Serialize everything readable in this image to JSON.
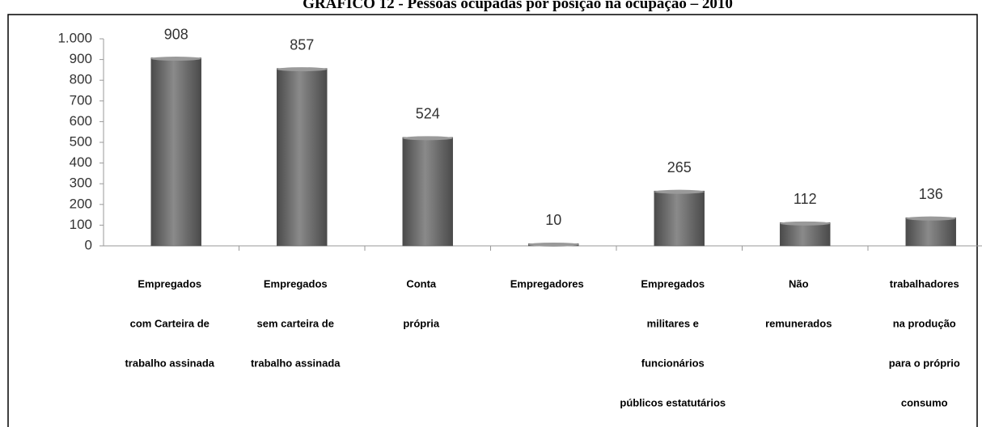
{
  "chart_data": {
    "type": "bar",
    "title": "GRÁFICO 12 - Pessoas ocupadas por posição na ocupação – 2010",
    "categories": [
      [
        "Empregados",
        "com  Carteira de",
        "trabalho  assinada"
      ],
      [
        "Empregados",
        "sem carteira de",
        "trabalho assinada"
      ],
      [
        "Conta",
        "própria"
      ],
      [
        "Empregadores"
      ],
      [
        "Empregados",
        "militares e",
        "funcionários",
        "públicos estatutários"
      ],
      [
        "Não",
        "remunerados"
      ],
      [
        "trabalhadores",
        "na produção",
        "para o próprio",
        "consumo"
      ]
    ],
    "values": [
      908,
      857,
      524,
      10,
      265,
      112,
      136
    ],
    "color": "#6b6b6b",
    "ylim": [
      0,
      1000
    ],
    "yticks": [
      0,
      100,
      200,
      300,
      400,
      500,
      600,
      700,
      800,
      900,
      {
        "value": 1000,
        "label": "1.000"
      }
    ]
  }
}
